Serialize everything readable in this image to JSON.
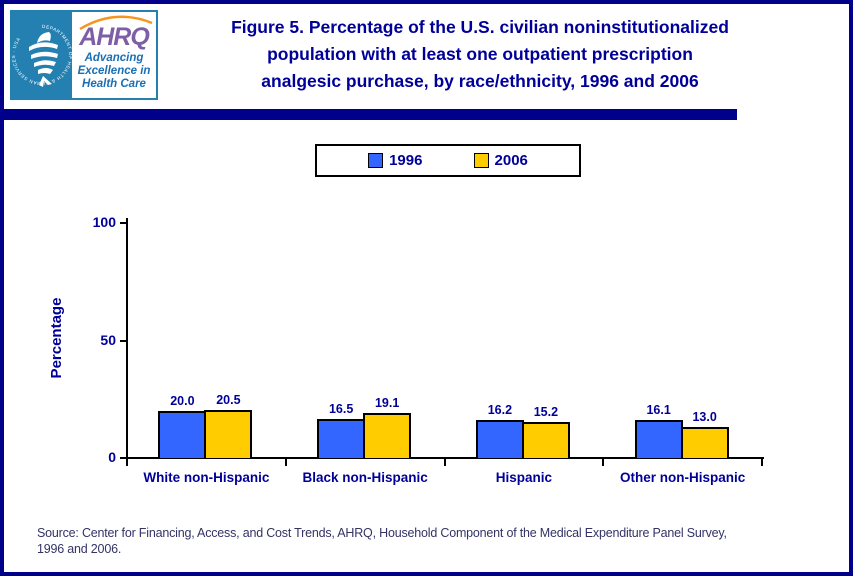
{
  "header": {
    "logo": {
      "seal_text": "DEPARTMENT OF HEALTH & HUMAN SERVICES · USA",
      "ahrq_acronym": "AHRQ",
      "tagline": "Advancing Excellence in Health Care"
    },
    "title_lines": [
      "Figure 5. Percentage of the U.S. civilian noninstitutionalized",
      "population with at least one outpatient prescription",
      "analgesic purchase, by race/ethnicity, 1996 and 2006"
    ]
  },
  "legend": {
    "items": [
      {
        "label": "1996",
        "color": "#3366FF"
      },
      {
        "label": "2006",
        "color": "#FFCC00"
      }
    ]
  },
  "chart_data": {
    "type": "bar",
    "title": "Figure 5. Percentage of the U.S. civilian noninstitutionalized population with at least one outpatient prescription analgesic purchase, by race/ethnicity, 1996 and 2006",
    "categories": [
      "White non-Hispanic",
      "Black non-Hispanic",
      "Hispanic",
      "Other non-Hispanic"
    ],
    "series": [
      {
        "name": "1996",
        "color": "#3366FF",
        "values": [
          20.0,
          16.5,
          16.2,
          16.1
        ]
      },
      {
        "name": "2006",
        "color": "#FFCC00",
        "values": [
          20.5,
          19.1,
          15.2,
          13.0
        ]
      }
    ],
    "xlabel": "",
    "ylabel": "Percentage",
    "ylim": [
      0,
      100
    ],
    "yticks": [
      0,
      50,
      100
    ],
    "grid": false,
    "legend_position": "top",
    "value_labels": true,
    "value_label_decimals": 1
  },
  "source": {
    "lines": [
      "Source: Center for Financing, Access, and Cost Trends, AHRQ, Household Component of the Medical Expenditure Panel Survey,",
      "1996 and 2006."
    ]
  },
  "colors": {
    "frame": "#00008B",
    "navy_text": "#000099",
    "seal_background": "#2580B2",
    "ahrq_purple": "#7E5FA5",
    "ahrq_arc_orange": "#F7941D",
    "tagline_blue": "#1A6FB5",
    "source_text": "#333366"
  }
}
